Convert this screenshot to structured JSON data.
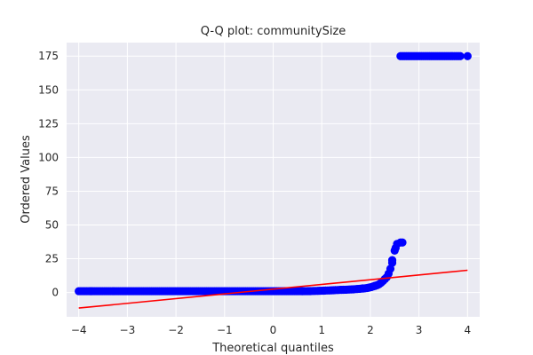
{
  "chart_data": {
    "type": "scatter",
    "title": "Q-Q plot: communitySize",
    "xlabel": "Theoretical quantiles",
    "ylabel": "Ordered Values",
    "xlim": [
      -4.25,
      4.25
    ],
    "ylim": [
      -18,
      185
    ],
    "xticks": [
      -4,
      -3,
      -2,
      -1,
      0,
      1,
      2,
      3,
      4
    ],
    "yticks": [
      0,
      25,
      50,
      75,
      100,
      125,
      150,
      175
    ],
    "grid": true,
    "background": "#eaeaf2",
    "point_color": "#0000ff",
    "line_color": "#ff0000",
    "series": [
      {
        "kind": "points",
        "segments": [
          {
            "x_from": -4.0,
            "x_to": -3.75,
            "y_from": 1,
            "y_to": 1
          },
          {
            "x_from": -3.75,
            "x_to": 0.6,
            "y_from": 1,
            "y_to": 1
          },
          {
            "x_from": 0.6,
            "x_to": 1.4,
            "y_from": 1,
            "y_to": 2
          },
          {
            "x_from": 1.4,
            "x_to": 1.85,
            "y_from": 2,
            "y_to": 3
          },
          {
            "x_from": 1.85,
            "x_to": 2.1,
            "y_from": 3,
            "y_to": 5
          },
          {
            "x_from": 2.1,
            "x_to": 2.3,
            "y_from": 5,
            "y_to": 10
          },
          {
            "x_from": 2.3,
            "x_to": 2.45,
            "y_from": 10,
            "y_to": 22
          }
        ],
        "points": [
          {
            "x": 2.45,
            "y": 24
          },
          {
            "x": 2.5,
            "y": 31
          },
          {
            "x": 2.52,
            "y": 33
          },
          {
            "x": 2.55,
            "y": 36
          },
          {
            "x": 2.62,
            "y": 37
          },
          {
            "x": 2.66,
            "y": 37
          },
          {
            "x": 4.0,
            "y": 175
          }
        ],
        "top_band": {
          "x_from": 2.62,
          "x_to": 3.85,
          "y": 175
        }
      },
      {
        "kind": "line",
        "start": {
          "x": -4.0,
          "y": -11.5
        },
        "end": {
          "x": 4.0,
          "y": 16.5
        }
      }
    ]
  }
}
